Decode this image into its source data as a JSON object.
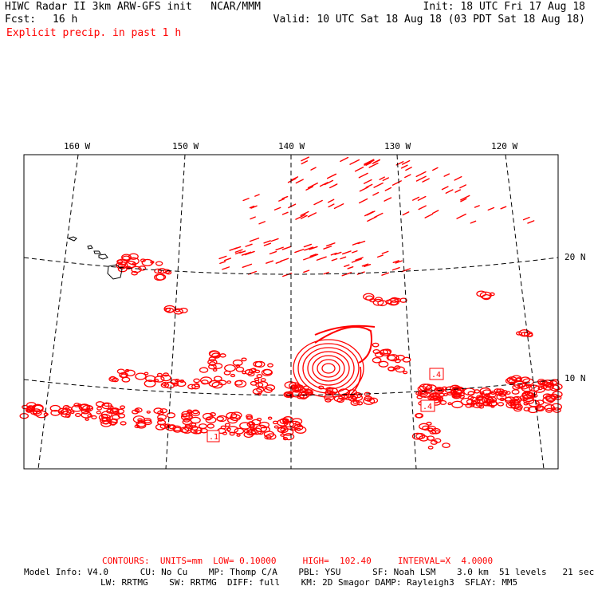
{
  "header": {
    "title_left": "HIWC Radar II 3km ARW-GFS init   NCAR/MMM",
    "init": "Init: 18 UTC Fri 17 Aug 18",
    "fcst_label": "Fcst:",
    "fcst_value": "16 h",
    "valid": "Valid: 10 UTC Sat 18 Aug 18 (03 PDT Sat 18 Aug 18)",
    "field": "Explicit precip. in past 1 h"
  },
  "map": {
    "lon_labels": [
      "160 W",
      "150 W",
      "140 W",
      "130 W",
      "120 W"
    ],
    "lat_labels": [
      "20 N",
      "10 N"
    ],
    "box_labels": [
      ".4",
      ".4",
      ".1"
    ],
    "colors": {
      "precip": "#ff0000",
      "grid": "#000000",
      "coast": "#000000"
    }
  },
  "footer": {
    "contours": "CONTOURS:  UNITS=mm  LOW= 0.10000     HIGH=  102.40     INTERVAL=X  4.0000",
    "model_info_1": "Model Info: V4.0      CU: No Cu    MP: Thomp C/A    PBL: YSU      SF: Noah LSM    3.0 km  51 levels   21 sec",
    "model_info_2": "LW: RRTMG    SW: RRTMG  DIFF: full    KM: 2D Smagor DAMP: Rayleigh3  SFLAY: MM5"
  }
}
